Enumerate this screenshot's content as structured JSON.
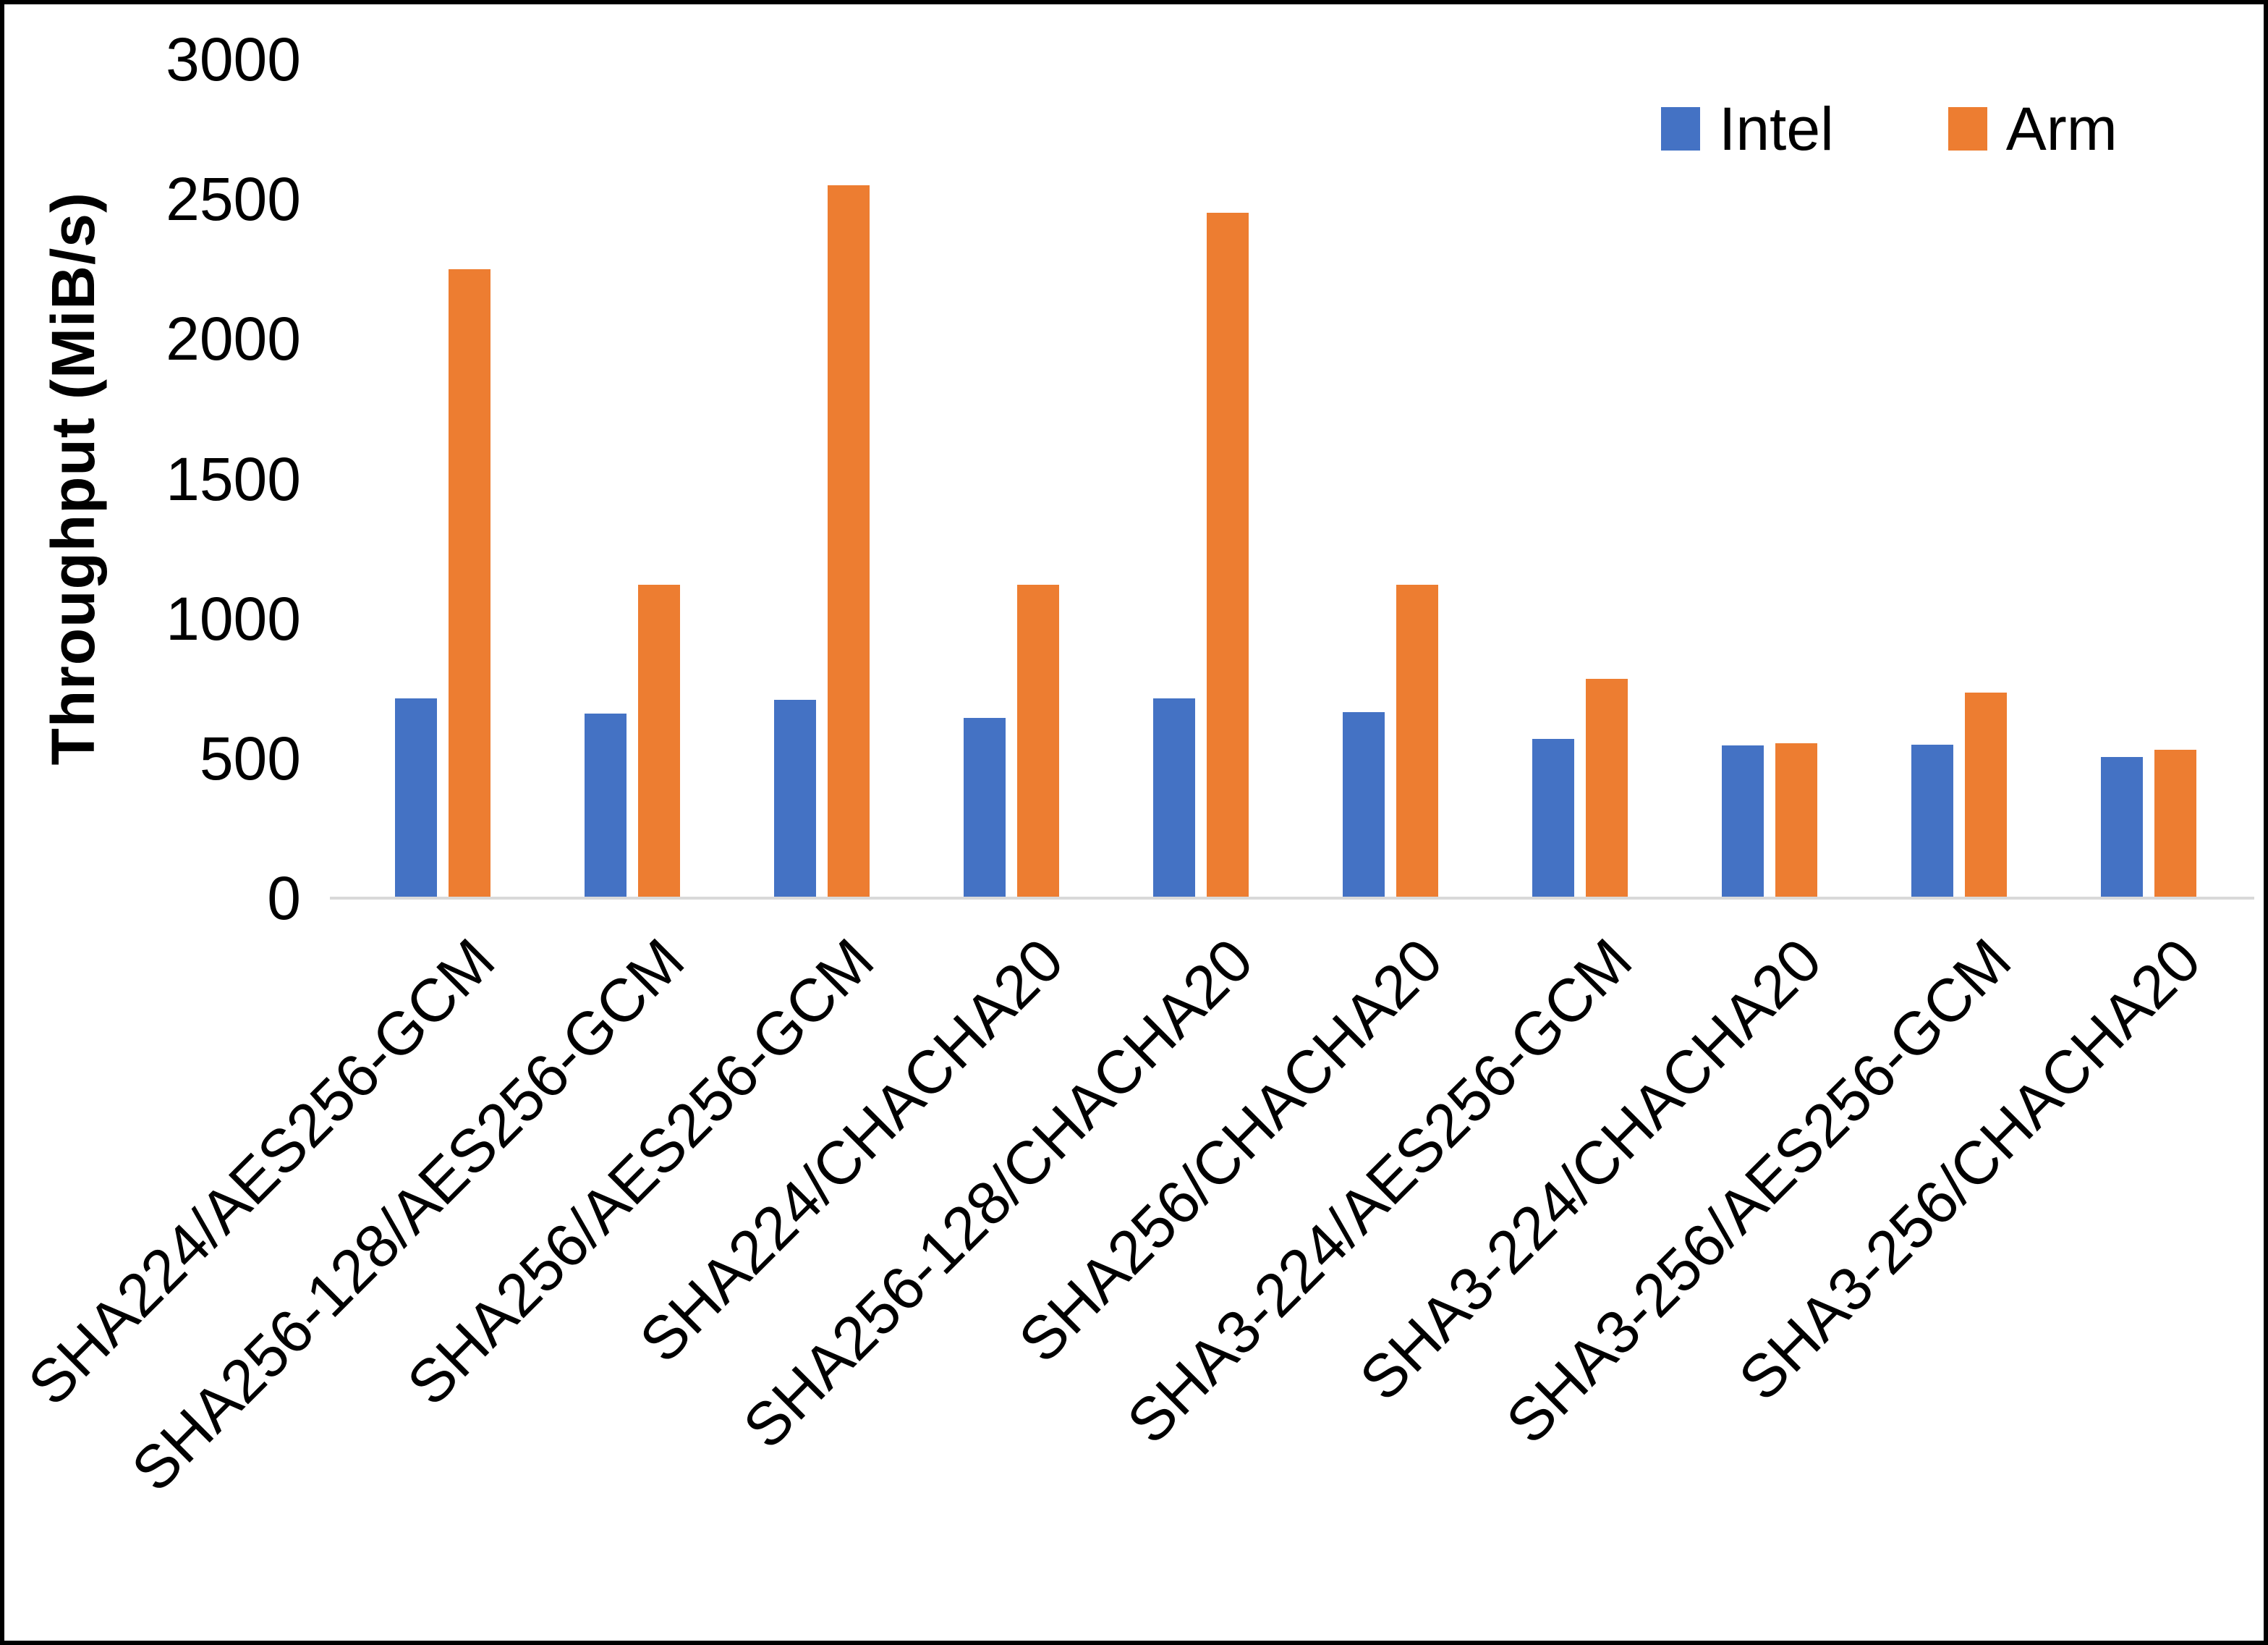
{
  "chart_data": {
    "type": "bar",
    "title": "",
    "xlabel": "",
    "ylabel": "Throughput (MiB/s)",
    "ylim": [
      0,
      3000
    ],
    "yticks": [
      0,
      500,
      1000,
      1500,
      2000,
      2500,
      3000
    ],
    "grid": false,
    "legend_position": "top-right",
    "background": "#ffffff",
    "axis_line_color": "#d9d9d9",
    "categories": [
      "SHA224/AES256-GCM",
      "SHA256-128/AES256-GCM",
      "SHA256/AES256-GCM",
      "SHA224/CHACHA20",
      "SHA256-128/CHACHA20",
      "SHA256/CHACHA20",
      "SHA3-224/AES256-GCM",
      "SHA3-224/CHACHA20",
      "SHA3-256/AES256-GCM",
      "SHA3-256/CHACHA20"
    ],
    "series": [
      {
        "name": "Intel",
        "color": "#4472C4",
        "values": [
          715,
          660,
          710,
          645,
          715,
          665,
          570,
          545,
          550,
          505
        ]
      },
      {
        "name": "Arm",
        "color": "#ED7D31",
        "values": [
          2250,
          1120,
          2550,
          1120,
          2450,
          1120,
          785,
          555,
          735,
          530
        ]
      }
    ]
  }
}
